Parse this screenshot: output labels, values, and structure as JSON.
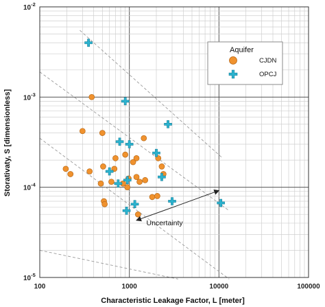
{
  "chart_data": {
    "type": "scatter",
    "x_scale": "log",
    "y_scale": "log",
    "xlim": [
      100,
      100000
    ],
    "ylim": [
      1e-05,
      0.01
    ],
    "grid": true,
    "legend_placement": "top-right",
    "xlabel": "Characteristic Leakage Factor, L [meter]",
    "ylabel": "Storativaty, S [dimensionless]",
    "x_ticks": [
      {
        "value": 100,
        "label": "100"
      },
      {
        "value": 1000,
        "label": "1000"
      },
      {
        "value": 10000,
        "label": "10000"
      },
      {
        "value": 100000,
        "label": "100000"
      }
    ],
    "y_ticks": [
      {
        "value": 1e-05,
        "base": "10",
        "exp": "-5"
      },
      {
        "value": 0.0001,
        "base": "10",
        "exp": "-4"
      },
      {
        "value": 0.001,
        "base": "10",
        "exp": "-3"
      },
      {
        "value": 0.01,
        "base": "10",
        "exp": "-2"
      }
    ],
    "legend_title": "Aquifer",
    "series": [
      {
        "name": "CJDN",
        "marker": "circle",
        "color": "#F0922E",
        "edge_color": "#B86A1A",
        "points": [
          {
            "x": 195,
            "y": 0.00016
          },
          {
            "x": 220,
            "y": 0.00014
          },
          {
            "x": 300,
            "y": 0.00042
          },
          {
            "x": 360,
            "y": 0.00015
          },
          {
            "x": 380,
            "y": 0.001
          },
          {
            "x": 480,
            "y": 0.00011
          },
          {
            "x": 500,
            "y": 0.0004
          },
          {
            "x": 510,
            "y": 0.00017
          },
          {
            "x": 520,
            "y": 7e-05
          },
          {
            "x": 530,
            "y": 6.5e-05
          },
          {
            "x": 630,
            "y": 0.000115
          },
          {
            "x": 680,
            "y": 0.00016
          },
          {
            "x": 700,
            "y": 0.00021
          },
          {
            "x": 850,
            "y": 0.00011
          },
          {
            "x": 900,
            "y": 0.00023
          },
          {
            "x": 950,
            "y": 0.0001
          },
          {
            "x": 980,
            "y": 0.000125
          },
          {
            "x": 1100,
            "y": 0.00019
          },
          {
            "x": 1200,
            "y": 0.00021
          },
          {
            "x": 1200,
            "y": 0.00013
          },
          {
            "x": 1250,
            "y": 5e-05
          },
          {
            "x": 1300,
            "y": 0.000115
          },
          {
            "x": 1450,
            "y": 0.00035
          },
          {
            "x": 1500,
            "y": 0.00012
          },
          {
            "x": 1800,
            "y": 7.8e-05
          },
          {
            "x": 2050,
            "y": 8e-05
          },
          {
            "x": 2100,
            "y": 0.00021
          },
          {
            "x": 2300,
            "y": 0.00017
          },
          {
            "x": 2400,
            "y": 0.00014
          }
        ]
      },
      {
        "name": "OPCJ",
        "marker": "plus",
        "color": "#2BB3CF",
        "edge_color": "#1A7F98",
        "points": [
          {
            "x": 350,
            "y": 0.004
          },
          {
            "x": 600,
            "y": 0.00015
          },
          {
            "x": 750,
            "y": 0.00011
          },
          {
            "x": 780,
            "y": 0.00032
          },
          {
            "x": 900,
            "y": 0.0009
          },
          {
            "x": 930,
            "y": 5.5e-05
          },
          {
            "x": 950,
            "y": 0.00012
          },
          {
            "x": 1000,
            "y": 0.0003
          },
          {
            "x": 1150,
            "y": 6.5e-05
          },
          {
            "x": 2000,
            "y": 0.00024
          },
          {
            "x": 2300,
            "y": 0.00013
          },
          {
            "x": 2700,
            "y": 0.0005
          },
          {
            "x": 3000,
            "y": 7e-05
          },
          {
            "x": 10500,
            "y": 6.7e-05
          }
        ]
      }
    ],
    "reference_lines": [
      {
        "style": "dashed",
        "x1": 100,
        "y1": 2e-05,
        "x2": 3500,
        "y2": 9.6e-06
      },
      {
        "style": "dashed",
        "x1": 100,
        "y1": 0.00035,
        "x2": 13000,
        "y2": 9.6e-06
      },
      {
        "style": "dashed",
        "x1": 100,
        "y1": 0.0019,
        "x2": 13000,
        "y2": 5.5e-05
      },
      {
        "style": "dashed",
        "x1": 280,
        "y1": 0.0055,
        "x2": 11000,
        "y2": 0.00021
      }
    ],
    "annotations": [
      {
        "text": "Uncertainty",
        "text_x": 1550,
        "text_y": 3.8e-05,
        "arrow_from": {
          "x": 2400,
          "y": 5.5e-05
        },
        "arrow_to_a": {
          "x": 10000,
          "y": 9.2e-05
        },
        "arrow_to_b": {
          "x": 1200,
          "y": 4.3e-05
        }
      }
    ]
  }
}
